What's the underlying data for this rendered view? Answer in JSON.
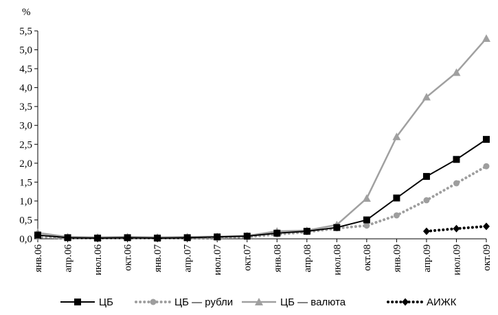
{
  "chart_data": {
    "type": "line",
    "title": "",
    "ylabel": "%",
    "xlabel": "",
    "categories": [
      "янв.06",
      "апр.06",
      "июл.06",
      "окт.06",
      "янв.07",
      "апр.07",
      "июл.07",
      "окт.07",
      "янв.08",
      "апр.08",
      "июл.08",
      "окт.08",
      "янв.09",
      "апр.09",
      "июл.09",
      "окт.09"
    ],
    "ylim": [
      0,
      5.5
    ],
    "yticks": [
      "0,0",
      "0,5",
      "1,0",
      "1,5",
      "2,0",
      "2,5",
      "3,0",
      "3,5",
      "4,0",
      "4,5",
      "5,0",
      "5,5"
    ],
    "grid": false,
    "legend_position": "bottom",
    "series": [
      {
        "name": "ЦБ",
        "color": "#000000",
        "style": "solid",
        "marker": "square",
        "values": [
          0.1,
          0.03,
          0.02,
          0.03,
          0.02,
          0.03,
          0.05,
          0.07,
          0.15,
          0.2,
          0.3,
          0.5,
          1.08,
          1.65,
          2.1,
          2.63
        ]
      },
      {
        "name": "ЦБ — рубли",
        "color": "#9e9e9e",
        "style": "dotted",
        "marker": "circle",
        "values": [
          0.05,
          0.02,
          0.02,
          0.02,
          0.02,
          0.02,
          0.03,
          0.05,
          0.12,
          0.18,
          0.28,
          0.35,
          0.62,
          1.02,
          1.47,
          1.92
        ]
      },
      {
        "name": "ЦБ — валюта",
        "color": "#a0a0a0",
        "style": "solid",
        "marker": "triangle",
        "values": [
          0.16,
          0.05,
          0.04,
          0.05,
          0.04,
          0.05,
          0.06,
          0.08,
          0.2,
          0.22,
          0.37,
          1.07,
          2.7,
          3.75,
          4.4,
          5.3
        ]
      },
      {
        "name": "АИЖК",
        "color": "#000000",
        "style": "dotted",
        "marker": "diamond",
        "values": [
          null,
          null,
          null,
          null,
          null,
          null,
          null,
          null,
          null,
          null,
          null,
          null,
          null,
          0.2,
          0.27,
          0.33
        ]
      }
    ]
  }
}
